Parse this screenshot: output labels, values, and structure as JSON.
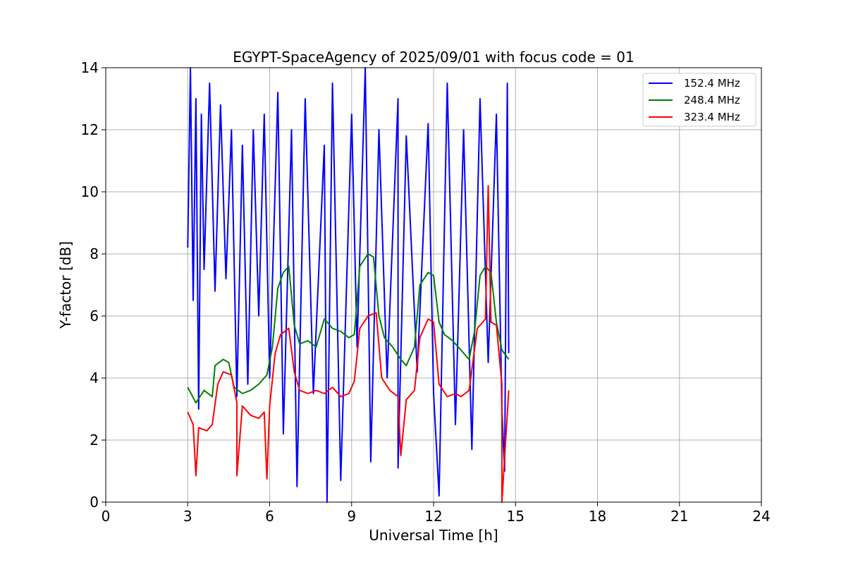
{
  "chart_data": {
    "type": "line",
    "title": "EGYPT-SpaceAgency of 2025/09/01 with focus code = 01",
    "xlabel": "Universal Time [h]",
    "ylabel": "Y-factor [dB]",
    "xlim": [
      0,
      24
    ],
    "ylim": [
      0,
      14
    ],
    "xticks": [
      0,
      3,
      6,
      9,
      12,
      15,
      18,
      21,
      24
    ],
    "yticks": [
      0,
      2,
      4,
      6,
      8,
      10,
      12,
      14
    ],
    "grid": true,
    "legend_position": "top-right",
    "series": [
      {
        "name": "152.4 MHz",
        "color": "#0000ff",
        "points": [
          [
            3.0,
            8.2
          ],
          [
            3.1,
            14.0
          ],
          [
            3.2,
            6.5
          ],
          [
            3.3,
            13.0
          ],
          [
            3.4,
            3.0
          ],
          [
            3.5,
            12.5
          ],
          [
            3.6,
            7.5
          ],
          [
            3.8,
            13.5
          ],
          [
            4.0,
            6.8
          ],
          [
            4.2,
            12.8
          ],
          [
            4.4,
            7.2
          ],
          [
            4.6,
            12.0
          ],
          [
            4.8,
            3.4
          ],
          [
            5.0,
            11.5
          ],
          [
            5.2,
            3.8
          ],
          [
            5.4,
            12.0
          ],
          [
            5.6,
            6.0
          ],
          [
            5.8,
            12.5
          ],
          [
            6.0,
            4.0
          ],
          [
            6.3,
            13.2
          ],
          [
            6.5,
            2.2
          ],
          [
            6.8,
            12.0
          ],
          [
            7.0,
            0.5
          ],
          [
            7.3,
            13.0
          ],
          [
            7.6,
            3.5
          ],
          [
            8.0,
            11.5
          ],
          [
            8.1,
            0.0
          ],
          [
            8.3,
            13.5
          ],
          [
            8.6,
            0.7
          ],
          [
            9.0,
            12.5
          ],
          [
            9.2,
            5.0
          ],
          [
            9.5,
            14.0
          ],
          [
            9.7,
            1.3
          ],
          [
            10.0,
            12.0
          ],
          [
            10.3,
            4.0
          ],
          [
            10.7,
            13.0
          ],
          [
            10.7,
            1.1
          ],
          [
            11.0,
            11.8
          ],
          [
            11.4,
            4.2
          ],
          [
            11.8,
            12.2
          ],
          [
            12.0,
            3.5
          ],
          [
            12.2,
            0.2
          ],
          [
            12.5,
            13.5
          ],
          [
            12.8,
            2.5
          ],
          [
            13.1,
            12.0
          ],
          [
            13.4,
            1.7
          ],
          [
            13.7,
            13.0
          ],
          [
            14.0,
            4.5
          ],
          [
            14.3,
            12.5
          ],
          [
            14.5,
            3.0
          ],
          [
            14.6,
            1.0
          ],
          [
            14.7,
            13.5
          ],
          [
            14.75,
            4.8
          ]
        ]
      },
      {
        "name": "248.4 MHz",
        "color": "#008000",
        "points": [
          [
            3.0,
            3.7
          ],
          [
            3.3,
            3.2
          ],
          [
            3.6,
            3.6
          ],
          [
            3.9,
            3.4
          ],
          [
            4.0,
            4.4
          ],
          [
            4.3,
            4.6
          ],
          [
            4.5,
            4.5
          ],
          [
            4.7,
            3.7
          ],
          [
            5.0,
            3.5
          ],
          [
            5.3,
            3.6
          ],
          [
            5.6,
            3.8
          ],
          [
            5.9,
            4.1
          ],
          [
            6.1,
            5.0
          ],
          [
            6.3,
            6.9
          ],
          [
            6.5,
            7.4
          ],
          [
            6.7,
            7.6
          ],
          [
            6.9,
            5.7
          ],
          [
            7.1,
            5.1
          ],
          [
            7.4,
            5.2
          ],
          [
            7.7,
            5.0
          ],
          [
            8.0,
            5.9
          ],
          [
            8.3,
            5.6
          ],
          [
            8.6,
            5.5
          ],
          [
            8.9,
            5.3
          ],
          [
            9.1,
            5.4
          ],
          [
            9.3,
            7.6
          ],
          [
            9.6,
            8.0
          ],
          [
            9.8,
            7.9
          ],
          [
            10.0,
            6.0
          ],
          [
            10.2,
            5.3
          ],
          [
            10.5,
            5.0
          ],
          [
            10.8,
            4.6
          ],
          [
            11.0,
            4.4
          ],
          [
            11.3,
            5.0
          ],
          [
            11.5,
            7.0
          ],
          [
            11.8,
            7.4
          ],
          [
            12.0,
            7.3
          ],
          [
            12.2,
            5.8
          ],
          [
            12.4,
            5.4
          ],
          [
            12.7,
            5.2
          ],
          [
            13.0,
            4.9
          ],
          [
            13.3,
            4.6
          ],
          [
            13.5,
            5.5
          ],
          [
            13.7,
            7.3
          ],
          [
            13.9,
            7.6
          ],
          [
            14.1,
            7.4
          ],
          [
            14.3,
            5.8
          ],
          [
            14.5,
            4.9
          ],
          [
            14.75,
            4.6
          ]
        ]
      },
      {
        "name": "323.4 MHz",
        "color": "#ff0000",
        "points": [
          [
            3.0,
            2.9
          ],
          [
            3.2,
            2.5
          ],
          [
            3.3,
            0.85
          ],
          [
            3.4,
            2.4
          ],
          [
            3.7,
            2.3
          ],
          [
            3.9,
            2.5
          ],
          [
            4.1,
            3.8
          ],
          [
            4.3,
            4.2
          ],
          [
            4.6,
            4.1
          ],
          [
            4.8,
            3.2
          ],
          [
            4.8,
            0.85
          ],
          [
            5.0,
            3.1
          ],
          [
            5.3,
            2.8
          ],
          [
            5.6,
            2.7
          ],
          [
            5.8,
            2.9
          ],
          [
            5.9,
            0.75
          ],
          [
            6.0,
            3.1
          ],
          [
            6.2,
            4.8
          ],
          [
            6.4,
            5.4
          ],
          [
            6.7,
            5.6
          ],
          [
            6.9,
            4.2
          ],
          [
            7.1,
            3.6
          ],
          [
            7.4,
            3.5
          ],
          [
            7.7,
            3.6
          ],
          [
            8.0,
            3.5
          ],
          [
            8.3,
            3.7
          ],
          [
            8.6,
            3.4
          ],
          [
            8.9,
            3.5
          ],
          [
            9.1,
            3.9
          ],
          [
            9.3,
            5.6
          ],
          [
            9.6,
            6.0
          ],
          [
            9.9,
            6.1
          ],
          [
            10.1,
            4.0
          ],
          [
            10.4,
            3.6
          ],
          [
            10.7,
            3.4
          ],
          [
            10.8,
            1.5
          ],
          [
            11.0,
            3.3
          ],
          [
            11.3,
            3.6
          ],
          [
            11.5,
            5.3
          ],
          [
            11.8,
            5.9
          ],
          [
            12.0,
            5.8
          ],
          [
            12.2,
            3.8
          ],
          [
            12.5,
            3.4
          ],
          [
            12.8,
            3.5
          ],
          [
            13.0,
            3.4
          ],
          [
            13.3,
            3.6
          ],
          [
            13.6,
            5.6
          ],
          [
            13.9,
            5.9
          ],
          [
            14.0,
            10.2
          ],
          [
            14.1,
            5.8
          ],
          [
            14.3,
            5.7
          ],
          [
            14.5,
            3.8
          ],
          [
            14.5,
            0.0
          ],
          [
            14.75,
            3.6
          ]
        ]
      }
    ]
  }
}
